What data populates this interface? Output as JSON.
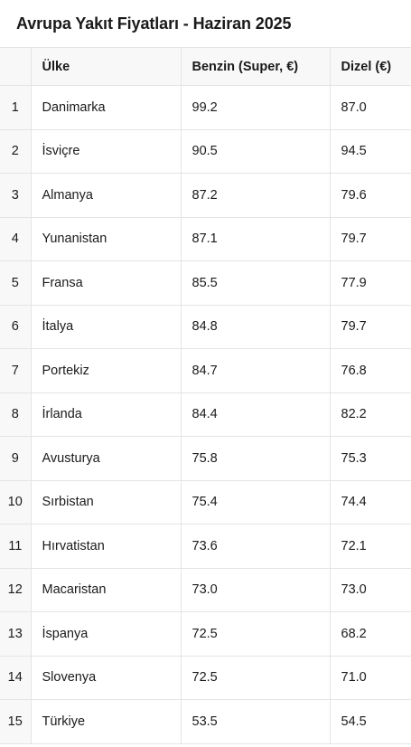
{
  "title": "Avrupa Yakıt Fiyatları - Haziran 2025",
  "table": {
    "headers": [
      "",
      "Ülke",
      "Benzin (Super, €)",
      "Dizel (€)"
    ],
    "rows": [
      [
        "1",
        "Danimarka",
        "99.2",
        "87.0"
      ],
      [
        "2",
        "İsviçre",
        "90.5",
        "94.5"
      ],
      [
        "3",
        "Almanya",
        "87.2",
        "79.6"
      ],
      [
        "4",
        "Yunanistan",
        "87.1",
        "79.7"
      ],
      [
        "5",
        "Fransa",
        "85.5",
        "77.9"
      ],
      [
        "6",
        "İtalya",
        "84.8",
        "79.7"
      ],
      [
        "7",
        "Portekiz",
        "84.7",
        "76.8"
      ],
      [
        "8",
        "İrlanda",
        "84.4",
        "82.2"
      ],
      [
        "9",
        "Avusturya",
        "75.8",
        "75.3"
      ],
      [
        "10",
        "Sırbistan",
        "75.4",
        "74.4"
      ],
      [
        "11",
        "Hırvatistan",
        "73.6",
        "72.1"
      ],
      [
        "12",
        "Macaristan",
        "73.0",
        "73.0"
      ],
      [
        "13",
        "İspanya",
        "72.5",
        "68.2"
      ],
      [
        "14",
        "Slovenya",
        "72.5",
        "71.0"
      ],
      [
        "15",
        "Türkiye",
        "53.5",
        "54.5"
      ]
    ]
  }
}
